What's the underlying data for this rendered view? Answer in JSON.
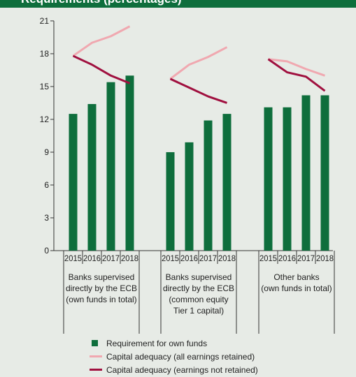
{
  "header": {
    "title": "Requirements (percentages)"
  },
  "colors": {
    "bars": "#0e6e3c",
    "line_retained": "#f0a8b0",
    "line_not_retained": "#a0103f",
    "header_band": "#0e6e3c",
    "background": "#e7ebe6"
  },
  "chart_data": {
    "type": "bar",
    "ylim": [
      0,
      21
    ],
    "yticks": [
      "0",
      "3",
      "6",
      "9",
      "12",
      "15",
      "18",
      "21"
    ],
    "groups": [
      {
        "label": "Banks supervised directly by the ECB (own funds in total)",
        "label_lines": [
          "Banks supervised",
          "directly by the ECB",
          "(own funds in total)"
        ],
        "years": [
          "2015",
          "2016",
          "2017",
          "2018"
        ],
        "requirement": [
          12.5,
          13.4,
          15.4,
          16.0
        ],
        "adequacy_retained": [
          17.8,
          19.0,
          19.6,
          20.5
        ],
        "adequacy_not_retained": [
          17.8,
          17.0,
          16.0,
          15.3
        ]
      },
      {
        "label": "Banks supervised directly by the ECB (common equity Tier 1 capital)",
        "label_lines": [
          "Banks supervised",
          "directly by the ECB",
          "(common equity",
          "Tier 1 capital)"
        ],
        "years": [
          "2015",
          "2016",
          "2017",
          "2018"
        ],
        "requirement": [
          9.0,
          9.9,
          11.9,
          12.5
        ],
        "adequacy_retained": [
          15.7,
          17.0,
          17.7,
          18.6
        ],
        "adequacy_not_retained": [
          15.7,
          14.9,
          14.1,
          13.5
        ]
      },
      {
        "label": "Other banks (own funds in total)",
        "label_lines": [
          "Other banks",
          "(own funds in total)"
        ],
        "years": [
          "2015",
          "2016",
          "2017",
          "2018"
        ],
        "requirement": [
          13.1,
          13.1,
          14.2,
          14.2
        ],
        "adequacy_retained": [
          17.5,
          17.3,
          16.6,
          16.0
        ],
        "adequacy_not_retained": [
          17.5,
          16.3,
          15.9,
          14.6
        ]
      }
    ],
    "legend": [
      {
        "key": "requirement",
        "label": "Requirement for own funds",
        "kind": "bar"
      },
      {
        "key": "adequacy_retained",
        "label": "Capital adequacy (all earnings retained)",
        "kind": "line"
      },
      {
        "key": "adequacy_not_retained",
        "label": "Capital adequacy (earnings not retained)",
        "kind": "line"
      }
    ]
  }
}
